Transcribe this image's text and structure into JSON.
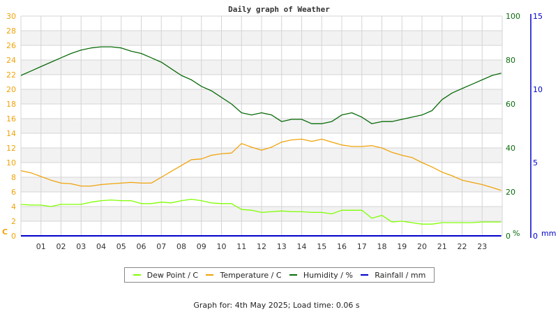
{
  "chart_data": {
    "type": "line",
    "title": "Daily graph of Weather",
    "xlabel": "",
    "x_ticks": [
      "01",
      "02",
      "03",
      "04",
      "05",
      "06",
      "07",
      "08",
      "09",
      "10",
      "11",
      "12",
      "13",
      "14",
      "15",
      "16",
      "17",
      "18",
      "19",
      "20",
      "21",
      "22",
      "23"
    ],
    "x_range_hours": [
      0,
      24
    ],
    "y_left": {
      "label": "C",
      "ticks": [
        0,
        2,
        4,
        6,
        8,
        10,
        12,
        14,
        16,
        18,
        20,
        22,
        24,
        26,
        28,
        30
      ],
      "range": [
        0,
        30
      ],
      "color": "#f0a30a"
    },
    "y_right": {
      "label": "%",
      "ticks": [
        0,
        20,
        40,
        60,
        80,
        100
      ],
      "range": [
        0,
        100
      ],
      "color": "#0a6b0a"
    },
    "y_rain": {
      "label": "mm",
      "ticks": [
        0,
        5,
        10,
        15
      ],
      "range": [
        0,
        15
      ],
      "color": "#0000cc"
    },
    "grid": true,
    "legend_position": "bottom",
    "series": [
      {
        "name": "Dew Point / C",
        "axis": "left",
        "color": "#7fff00",
        "x": [
          0,
          0.5,
          1,
          1.5,
          2,
          2.5,
          3,
          3.5,
          4,
          4.5,
          5,
          5.5,
          6,
          6.5,
          7,
          7.5,
          8,
          8.5,
          9,
          9.5,
          10,
          10.5,
          11,
          11.5,
          12,
          12.5,
          13,
          13.5,
          14,
          14.5,
          15,
          15.5,
          16,
          16.5,
          17,
          17.5,
          18,
          18.5,
          19,
          19.5,
          20,
          20.5,
          21,
          21.5,
          22,
          22.5,
          23,
          23.5,
          23.95
        ],
        "values": [
          4.3,
          4.2,
          4.2,
          4.0,
          4.3,
          4.3,
          4.3,
          4.6,
          4.8,
          4.9,
          4.8,
          4.8,
          4.4,
          4.4,
          4.6,
          4.5,
          4.8,
          5.0,
          4.8,
          4.5,
          4.4,
          4.4,
          3.6,
          3.5,
          3.2,
          3.3,
          3.4,
          3.3,
          3.3,
          3.2,
          3.2,
          3.0,
          3.5,
          3.5,
          3.5,
          2.4,
          2.8,
          1.9,
          2.0,
          1.8,
          1.6,
          1.6,
          1.8,
          1.8,
          1.8,
          1.8,
          1.9,
          1.9,
          1.9
        ]
      },
      {
        "name": "Temperature / C",
        "axis": "left",
        "color": "#f0a30a",
        "x": [
          0,
          0.5,
          1,
          1.5,
          2,
          2.5,
          3,
          3.5,
          4,
          4.5,
          5,
          5.5,
          6,
          6.5,
          7,
          7.5,
          8,
          8.5,
          9,
          9.5,
          10,
          10.5,
          11,
          11.5,
          12,
          12.5,
          13,
          13.5,
          14,
          14.5,
          15,
          15.5,
          16,
          16.5,
          17,
          17.5,
          18,
          18.5,
          19,
          19.5,
          20,
          20.5,
          21,
          21.5,
          22,
          22.5,
          23,
          23.5,
          23.95
        ],
        "values": [
          8.9,
          8.6,
          8.1,
          7.6,
          7.2,
          7.1,
          6.8,
          6.8,
          7.0,
          7.1,
          7.2,
          7.3,
          7.2,
          7.2,
          8.0,
          8.8,
          9.6,
          10.4,
          10.5,
          11.0,
          11.2,
          11.3,
          12.6,
          12.1,
          11.7,
          12.1,
          12.8,
          13.1,
          13.2,
          12.9,
          13.2,
          12.8,
          12.4,
          12.2,
          12.2,
          12.3,
          12.0,
          11.4,
          11.0,
          10.7,
          10.0,
          9.4,
          8.7,
          8.2,
          7.6,
          7.3,
          7.0,
          6.6,
          6.2
        ]
      },
      {
        "name": "Humidity / %",
        "axis": "right",
        "color": "#0a6b0a",
        "x": [
          0,
          0.5,
          1,
          1.5,
          2,
          2.5,
          3,
          3.5,
          4,
          4.5,
          5,
          5.5,
          6,
          6.5,
          7,
          7.5,
          8,
          8.5,
          9,
          9.5,
          10,
          10.5,
          11,
          11.5,
          12,
          12.5,
          13,
          13.5,
          14,
          14.5,
          15,
          15.5,
          16,
          16.5,
          17,
          17.5,
          18,
          18.5,
          19,
          19.5,
          20,
          20.5,
          21,
          21.5,
          22,
          22.5,
          23,
          23.5,
          23.95
        ],
        "values": [
          73,
          75,
          77,
          79,
          81,
          83,
          84.5,
          85.5,
          86,
          86,
          85.5,
          84,
          83,
          81,
          79,
          76,
          73,
          71,
          68,
          66,
          63,
          60,
          56,
          55,
          56,
          55,
          52,
          53,
          53,
          51,
          51,
          52,
          55,
          56,
          54,
          51,
          52,
          52,
          53,
          54,
          55,
          57,
          62,
          65,
          67,
          69,
          71,
          73,
          74
        ]
      },
      {
        "name": "Rainfall / mm",
        "axis": "rain",
        "color": "#0000cc",
        "x": [
          0,
          23.95
        ],
        "values": [
          0,
          0
        ]
      }
    ]
  },
  "legend": {
    "items": [
      {
        "label": "Dew Point / C",
        "color": "#7fff00"
      },
      {
        "label": "Temperature / C",
        "color": "#f0a30a"
      },
      {
        "label": "Humidity / %",
        "color": "#0a6b0a"
      },
      {
        "label": "Rainfall / mm",
        "color": "#0000cc"
      }
    ]
  },
  "footer": {
    "text": "Graph for: 4th May 2025; Load time: 0.06 s"
  }
}
